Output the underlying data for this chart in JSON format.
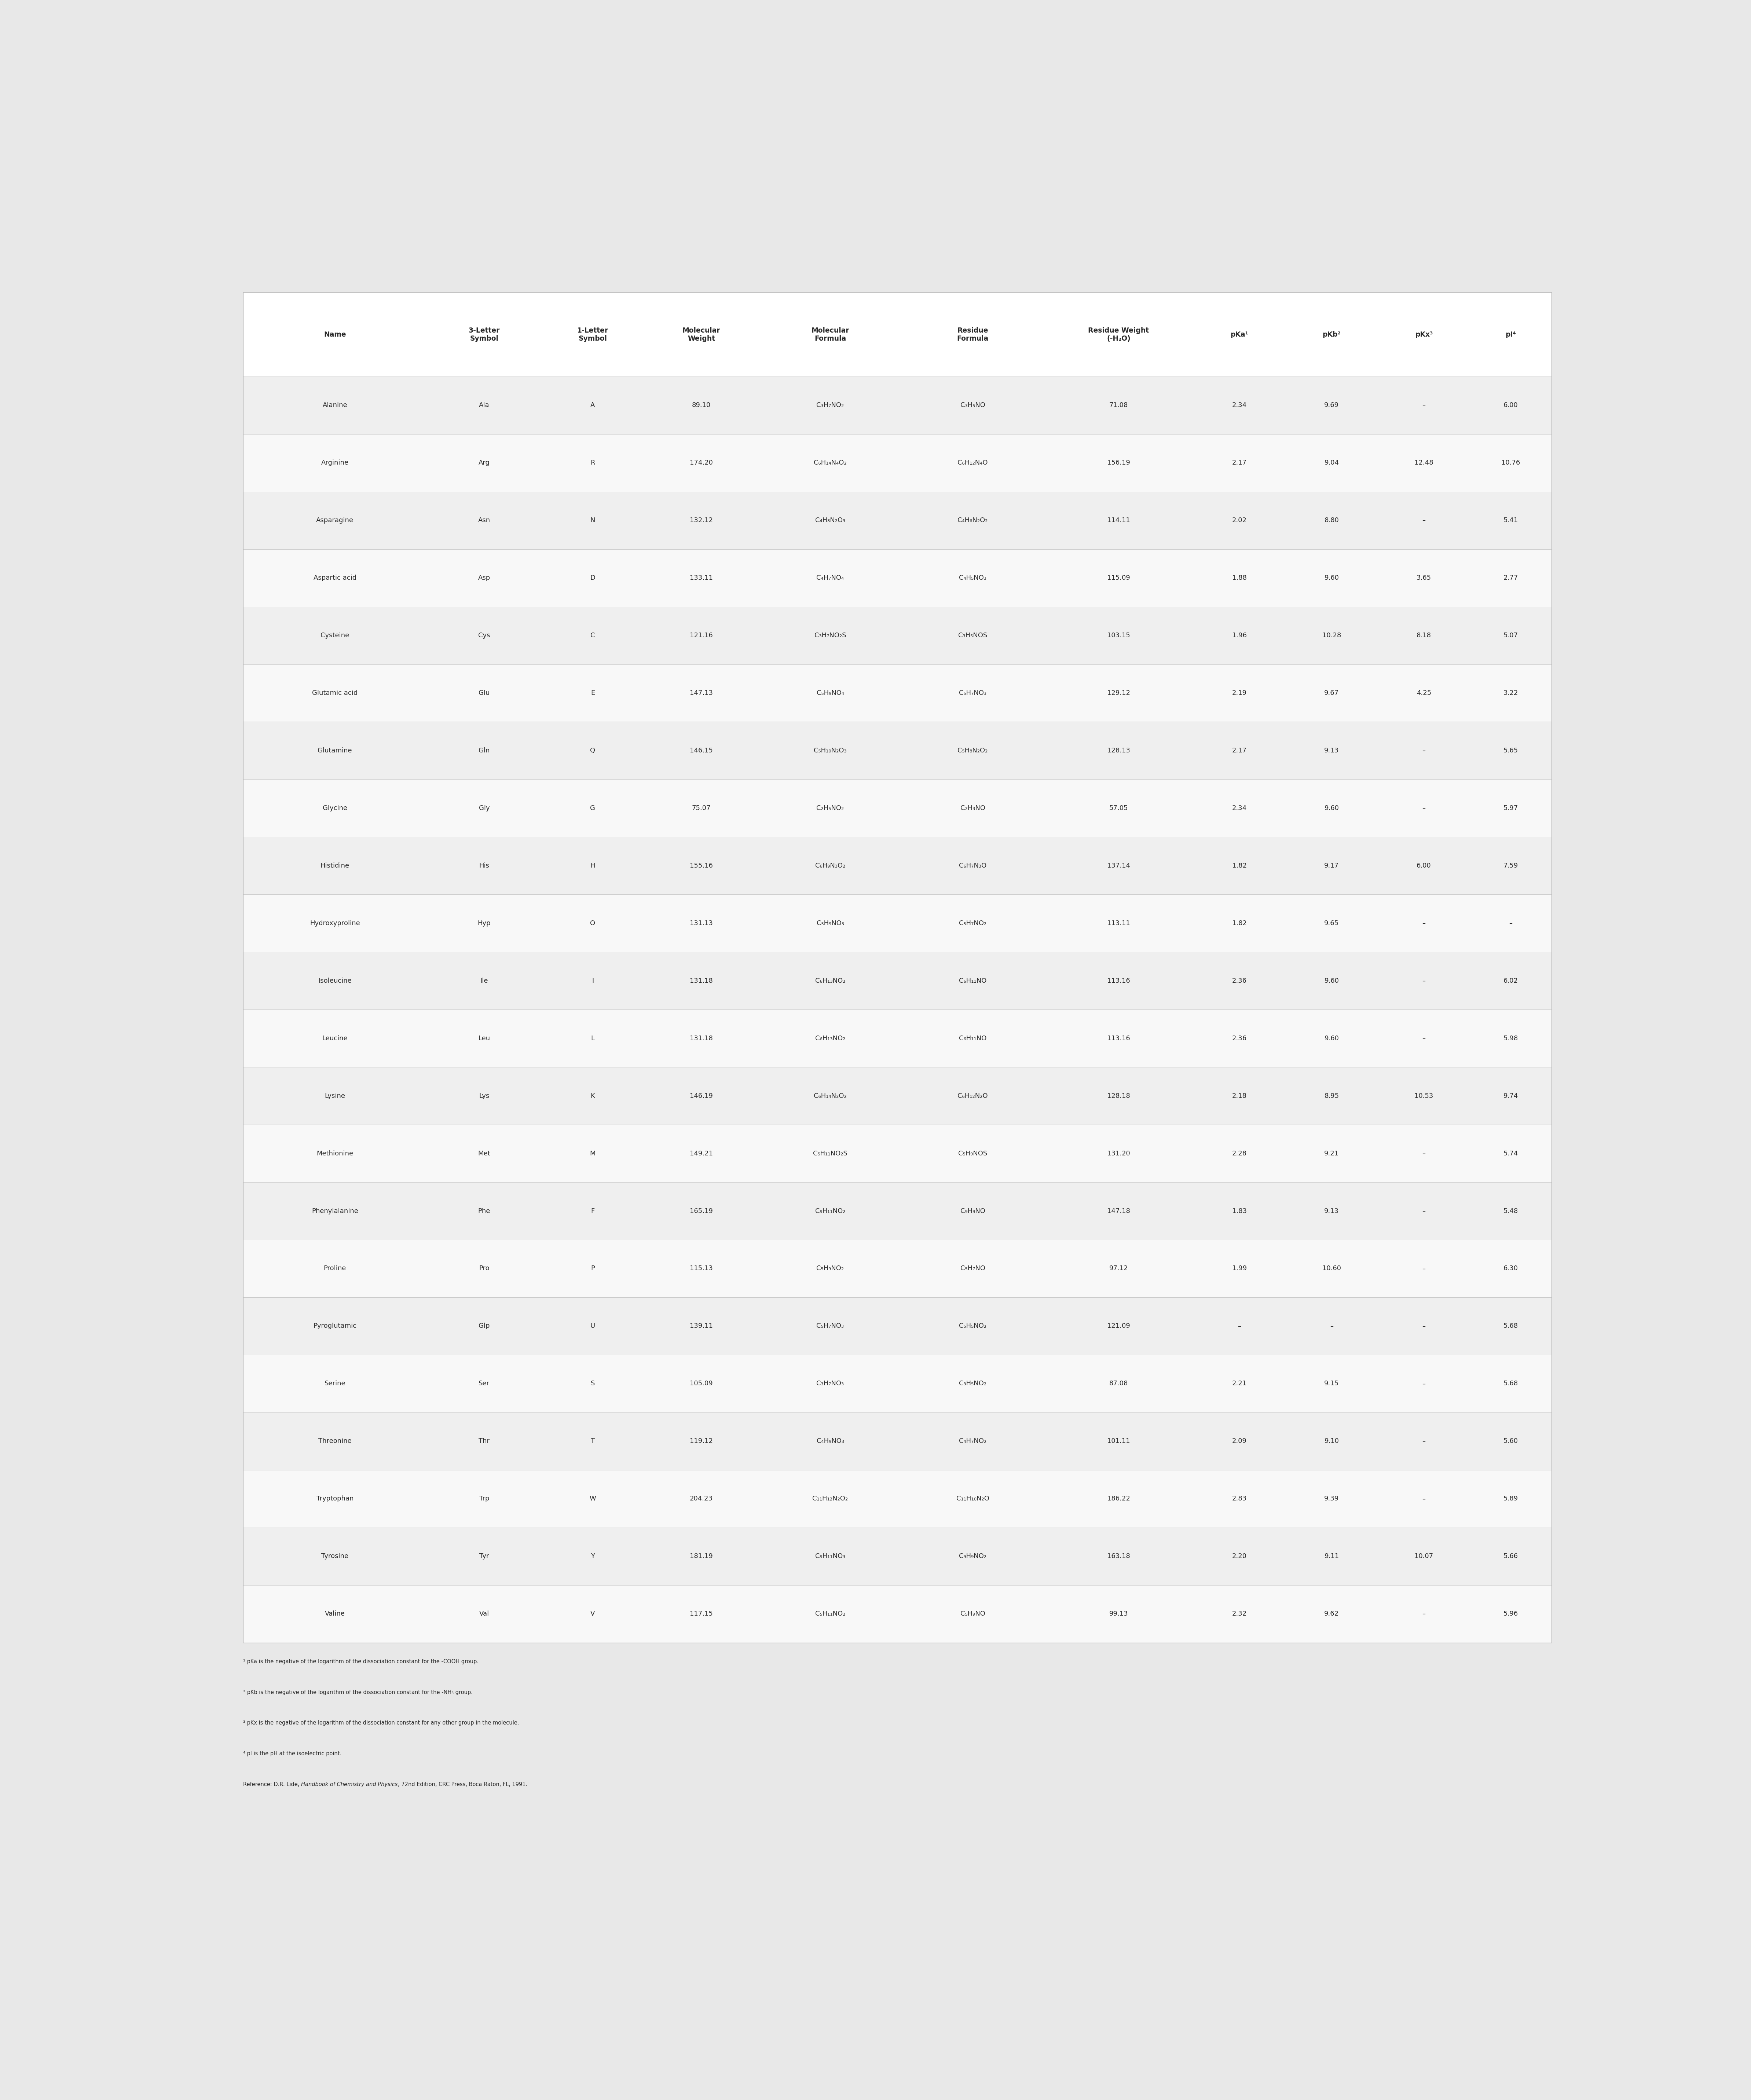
{
  "col_labels": [
    "Name",
    "3-Letter\nSymbol",
    "1-Letter\nSymbol",
    "Molecular\nWeight",
    "Molecular\nFormula",
    "Residue\nFormula",
    "Residue Weight\n(-H₂O)",
    "pKa¹",
    "pKb²",
    "pKx³",
    "pI⁴"
  ],
  "rows": [
    [
      "Alanine",
      "Ala",
      "A",
      "89.10",
      "C₃H₇NO₂",
      "C₃H₅NO",
      "71.08",
      "2.34",
      "9.69",
      "–",
      "6.00"
    ],
    [
      "Arginine",
      "Arg",
      "R",
      "174.20",
      "C₆H₁₄N₄O₂",
      "C₆H₁₂N₄O",
      "156.19",
      "2.17",
      "9.04",
      "12.48",
      "10.76"
    ],
    [
      "Asparagine",
      "Asn",
      "N",
      "132.12",
      "C₄H₈N₂O₃",
      "C₄H₆N₂O₂",
      "114.11",
      "2.02",
      "8.80",
      "–",
      "5.41"
    ],
    [
      "Aspartic acid",
      "Asp",
      "D",
      "133.11",
      "C₄H₇NO₄",
      "C₄H₅NO₃",
      "115.09",
      "1.88",
      "9.60",
      "3.65",
      "2.77"
    ],
    [
      "Cysteine",
      "Cys",
      "C",
      "121.16",
      "C₃H₇NO₂S",
      "C₃H₅NOS",
      "103.15",
      "1.96",
      "10.28",
      "8.18",
      "5.07"
    ],
    [
      "Glutamic acid",
      "Glu",
      "E",
      "147.13",
      "C₅H₉NO₄",
      "C₅H₇NO₃",
      "129.12",
      "2.19",
      "9.67",
      "4.25",
      "3.22"
    ],
    [
      "Glutamine",
      "Gln",
      "Q",
      "146.15",
      "C₅H₁₀N₂O₃",
      "C₅H₈N₂O₂",
      "128.13",
      "2.17",
      "9.13",
      "–",
      "5.65"
    ],
    [
      "Glycine",
      "Gly",
      "G",
      "75.07",
      "C₂H₅NO₂",
      "C₂H₃NO",
      "57.05",
      "2.34",
      "9.60",
      "–",
      "5.97"
    ],
    [
      "Histidine",
      "His",
      "H",
      "155.16",
      "C₆H₉N₃O₂",
      "C₆H₇N₃O",
      "137.14",
      "1.82",
      "9.17",
      "6.00",
      "7.59"
    ],
    [
      "Hydroxyproline",
      "Hyp",
      "O",
      "131.13",
      "C₅H₉NO₃",
      "C₅H₇NO₂",
      "113.11",
      "1.82",
      "9.65",
      "–",
      "–"
    ],
    [
      "Isoleucine",
      "Ile",
      "I",
      "131.18",
      "C₆H₁₃NO₂",
      "C₆H₁₁NO",
      "113.16",
      "2.36",
      "9.60",
      "–",
      "6.02"
    ],
    [
      "Leucine",
      "Leu",
      "L",
      "131.18",
      "C₆H₁₃NO₂",
      "C₆H₁₁NO",
      "113.16",
      "2.36",
      "9.60",
      "–",
      "5.98"
    ],
    [
      "Lysine",
      "Lys",
      "K",
      "146.19",
      "C₆H₁₄N₂O₂",
      "C₆H₁₂N₂O",
      "128.18",
      "2.18",
      "8.95",
      "10.53",
      "9.74"
    ],
    [
      "Methionine",
      "Met",
      "M",
      "149.21",
      "C₅H₁₁NO₂S",
      "C₅H₉NOS",
      "131.20",
      "2.28",
      "9.21",
      "–",
      "5.74"
    ],
    [
      "Phenylalanine",
      "Phe",
      "F",
      "165.19",
      "C₉H₁₁NO₂",
      "C₉H₉NO",
      "147.18",
      "1.83",
      "9.13",
      "–",
      "5.48"
    ],
    [
      "Proline",
      "Pro",
      "P",
      "115.13",
      "C₅H₉NO₂",
      "C₅H₇NO",
      "97.12",
      "1.99",
      "10.60",
      "–",
      "6.30"
    ],
    [
      "Pyroglutamic",
      "Glp",
      "U",
      "139.11",
      "C₅H₇NO₃",
      "C₅H₅NO₂",
      "121.09",
      "–",
      "–",
      "–",
      "5.68"
    ],
    [
      "Serine",
      "Ser",
      "S",
      "105.09",
      "C₃H₇NO₃",
      "C₃H₅NO₂",
      "87.08",
      "2.21",
      "9.15",
      "–",
      "5.68"
    ],
    [
      "Threonine",
      "Thr",
      "T",
      "119.12",
      "C₄H₉NO₃",
      "C₄H₇NO₂",
      "101.11",
      "2.09",
      "9.10",
      "–",
      "5.60"
    ],
    [
      "Tryptophan",
      "Trp",
      "W",
      "204.23",
      "C₁₁H₁₂N₂O₂",
      "C₁₁H₁₀N₂O",
      "186.22",
      "2.83",
      "9.39",
      "–",
      "5.89"
    ],
    [
      "Tyrosine",
      "Tyr",
      "Y",
      "181.19",
      "C₉H₁₁NO₃",
      "C₉H₉NO₂",
      "163.18",
      "2.20",
      "9.11",
      "10.07",
      "5.66"
    ],
    [
      "Valine",
      "Val",
      "V",
      "117.15",
      "C₅H₁₁NO₂",
      "C₅H₉NO",
      "99.13",
      "2.32",
      "9.62",
      "–",
      "5.96"
    ]
  ],
  "footnotes": [
    "¹ pKa is the negative of the logarithm of the dissociation constant for the -COOH group.",
    "² pKb is the negative of the logarithm of the dissociation constant for the -NH₃ group.",
    "³ pKx is the negative of the logarithm of the dissociation constant for any other group in the molecule.",
    "⁴ pI is the pH at the isoelectric point.",
    "Reference: D.R. Lide, Handbook of Chemistry and Physics, 72nd Edition, CRC Press, Boca Raton, FL, 1991."
  ],
  "row_color_even": "#efefef",
  "row_color_odd": "#f8f8f8",
  "header_bg": "#ffffff",
  "text_color": "#2a2a2a",
  "border_color": "#bbbbbb",
  "figure_bg": "#e8e8e8"
}
